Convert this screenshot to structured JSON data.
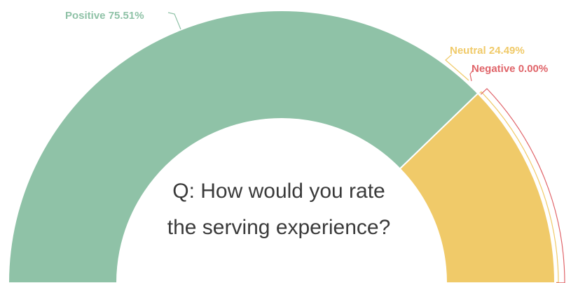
{
  "chart_data": {
    "type": "pie",
    "variant": "semicircle-donut",
    "center_text": "Q: How would you rate the serving experience?",
    "slices": [
      {
        "name": "Positive",
        "value": 75.51,
        "label": "Positive 75.51%",
        "color": "#8fc2a7"
      },
      {
        "name": "Neutral",
        "value": 24.49,
        "label": "Neutral 24.49%",
        "color": "#f0ca69"
      },
      {
        "name": "Negative",
        "value": 0.0,
        "label": "Negative 0.00%",
        "color": "#e06469"
      }
    ]
  }
}
